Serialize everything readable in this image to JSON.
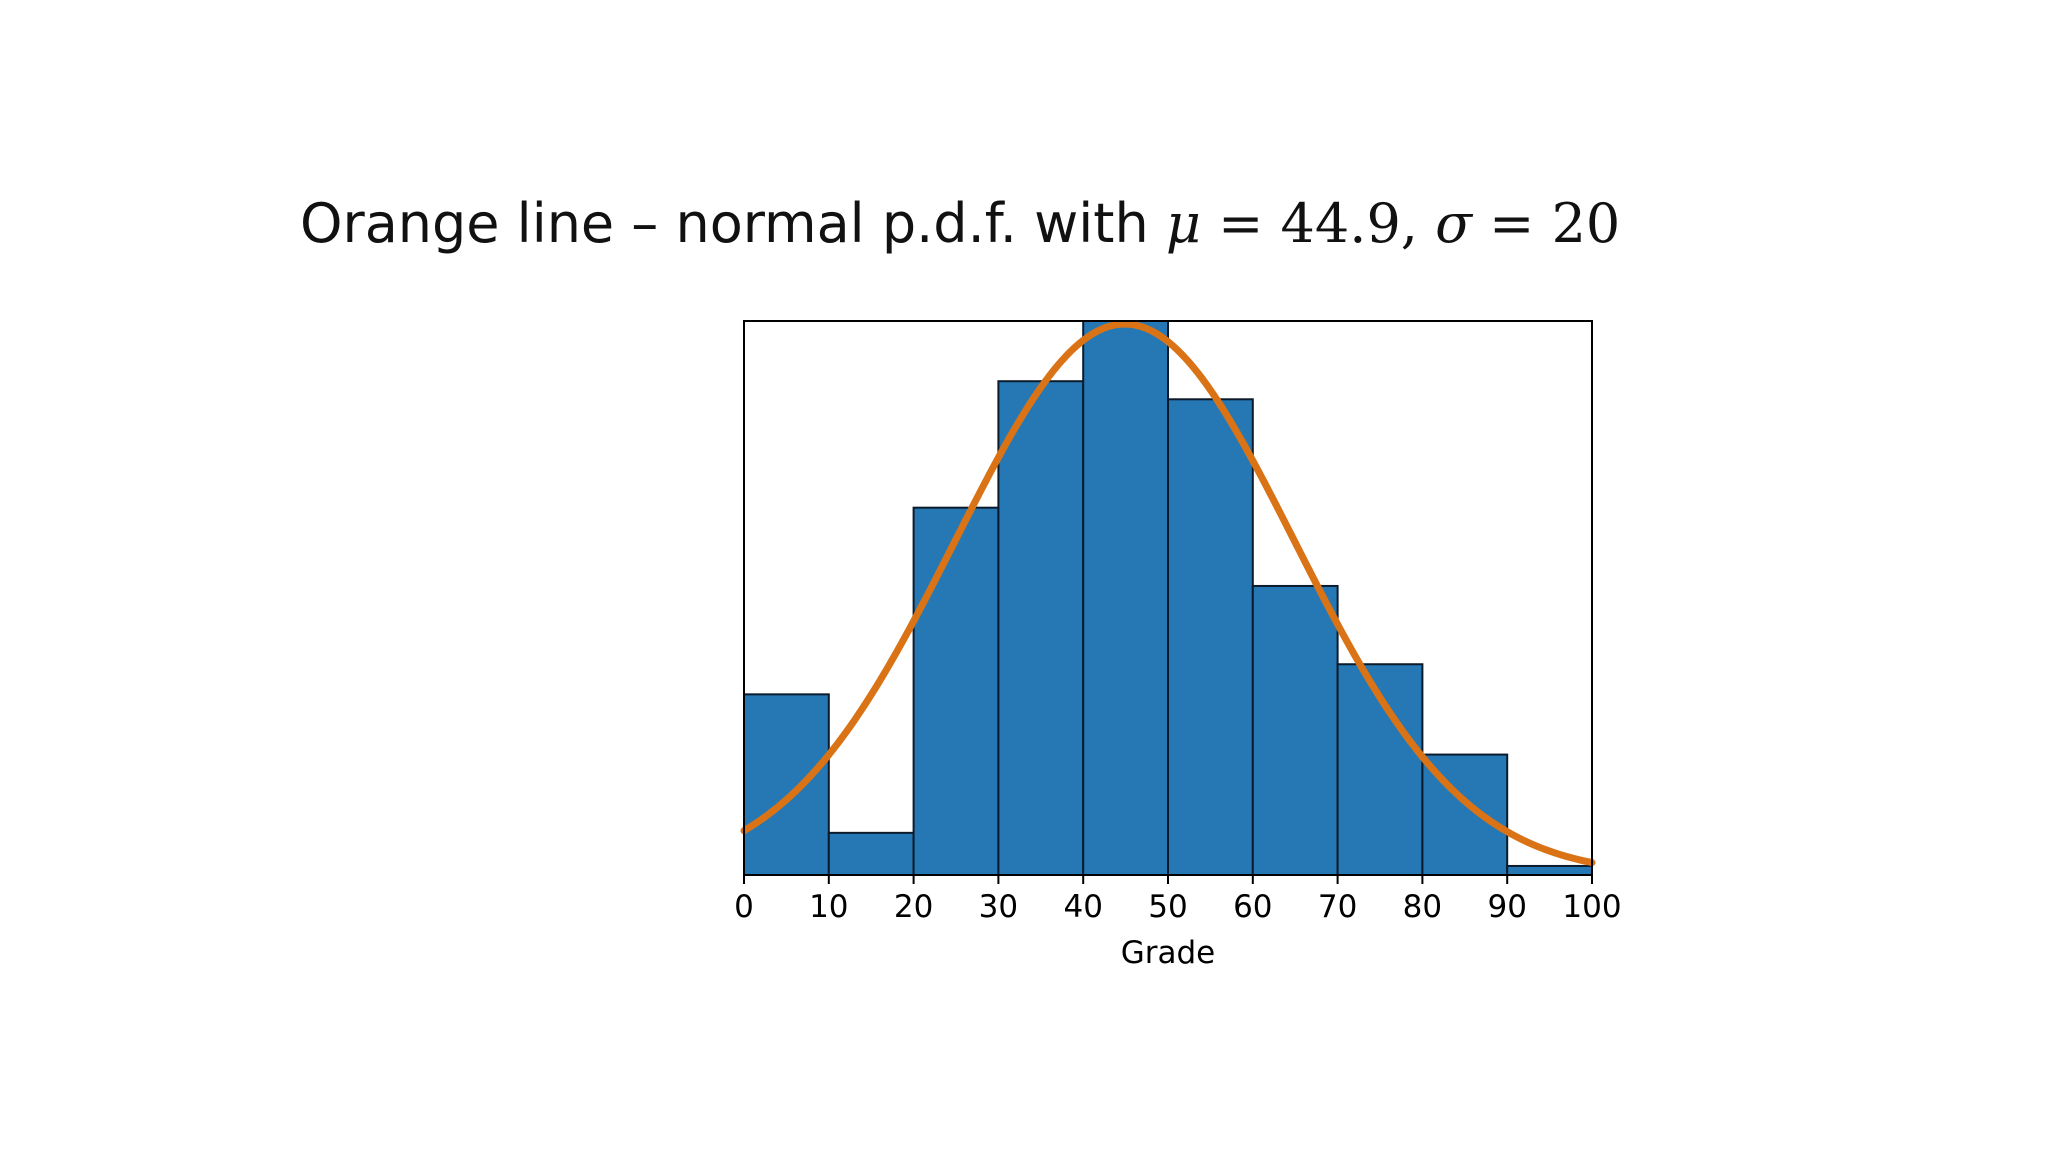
{
  "heading": {
    "prefix": "Orange line – normal p.d.f. with ",
    "mu_symbol": "μ",
    "mu_eq": " = 44.9, ",
    "sigma_symbol": "σ",
    "sigma_eq": " = 20"
  },
  "chart_data": {
    "type": "bar",
    "xlabel": "Grade",
    "bins": [
      0,
      10,
      20,
      30,
      40,
      50,
      60,
      70,
      80,
      90,
      100
    ],
    "counts": [
      3.0,
      0.7,
      6.1,
      8.2,
      9.2,
      7.9,
      4.8,
      3.5,
      2.0,
      0.15
    ],
    "ylim": [
      0,
      9.2
    ],
    "xlim": [
      0,
      100
    ],
    "xticks": [
      "0",
      "10",
      "20",
      "30",
      "40",
      "50",
      "60",
      "70",
      "80",
      "90",
      "100"
    ],
    "curve": {
      "mean": 44.9,
      "sd": 20,
      "peak": 9.15,
      "color": "#d97316"
    },
    "bar_color": "#2678b5",
    "bar_edge_color": "#0b1b2b",
    "grid": false
  }
}
